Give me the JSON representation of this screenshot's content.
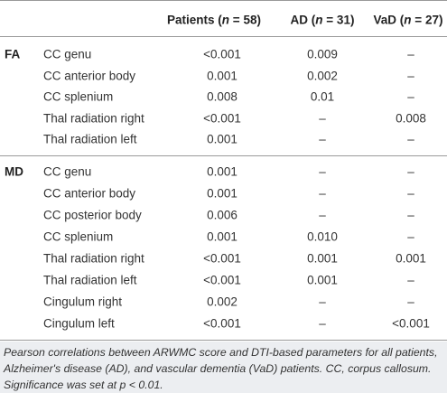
{
  "table": {
    "columns": [
      "Patients (n = 58)",
      "AD (n = 31)",
      "VaD (n = 27)"
    ],
    "groups": [
      {
        "label": "FA",
        "rows": [
          [
            "CC genu",
            "<0.001",
            "0.009",
            "–"
          ],
          [
            "CC anterior body",
            "0.001",
            "0.002",
            "–"
          ],
          [
            "CC splenium",
            "0.008",
            "0.01",
            "–"
          ],
          [
            "Thal radiation right",
            "<0.001",
            "–",
            "0.008"
          ],
          [
            "Thal radiation left",
            "0.001",
            "–",
            "–"
          ]
        ]
      },
      {
        "label": "MD",
        "rows": [
          [
            "CC genu",
            "0.001",
            "–",
            "–"
          ],
          [
            "CC anterior body",
            "0.001",
            "–",
            "–"
          ],
          [
            "CC posterior body",
            "0.006",
            "–",
            "–"
          ],
          [
            "CC splenium",
            "0.001",
            "0.010",
            "–"
          ],
          [
            "Thal radiation right",
            "<0.001",
            "0.001",
            "0.001"
          ],
          [
            "Thal radiation left",
            "<0.001",
            "0.001",
            "–"
          ],
          [
            "Cingulum right",
            "0.002",
            "–",
            "–"
          ],
          [
            "Cingulum left",
            "<0.001",
            "–",
            "<0.001"
          ]
        ]
      }
    ],
    "caption": "Pearson correlations between ARWMC score and DTI-based parameters for all patients, Alzheimer's disease (AD), and vascular dementia (VaD) patients. CC, corpus callosum. Significance was set at p < 0.01."
  }
}
